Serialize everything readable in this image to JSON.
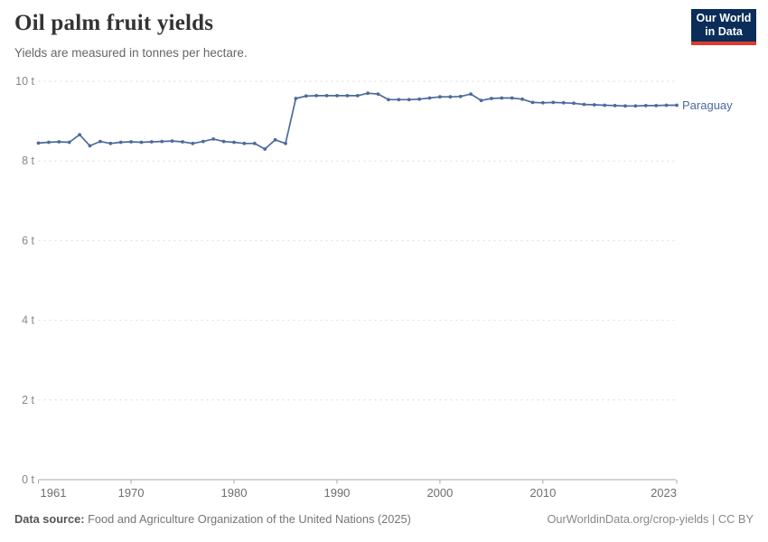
{
  "header": {
    "title": "Oil palm fruit yields",
    "subtitle": "Yields are measured in tonnes per hectare."
  },
  "logo": {
    "line1": "Our World",
    "line2": "in Data",
    "bg_color": "#0A2D5A",
    "bar_color": "#DC3A2E"
  },
  "chart_data": {
    "type": "line",
    "title": "Oil palm fruit yields",
    "unit": "t",
    "grid": "horizontal-dashed",
    "legend_position": "inline-end-label",
    "xlim": [
      1961,
      2023
    ],
    "ylim": [
      0,
      10
    ],
    "yticks": [
      0,
      2,
      4,
      6,
      8,
      10
    ],
    "ytick_suffix": " t",
    "xticks": [
      1961,
      1970,
      1980,
      1990,
      2000,
      2010,
      2023
    ],
    "x": [
      1961,
      1962,
      1963,
      1964,
      1965,
      1966,
      1967,
      1968,
      1969,
      1970,
      1971,
      1972,
      1973,
      1974,
      1975,
      1976,
      1977,
      1978,
      1979,
      1980,
      1981,
      1982,
      1983,
      1984,
      1985,
      1986,
      1987,
      1988,
      1989,
      1990,
      1991,
      1992,
      1993,
      1994,
      1995,
      1996,
      1997,
      1998,
      1999,
      2000,
      2001,
      2002,
      2003,
      2004,
      2005,
      2006,
      2007,
      2008,
      2009,
      2010,
      2011,
      2012,
      2013,
      2014,
      2015,
      2016,
      2017,
      2018,
      2019,
      2020,
      2021,
      2022,
      2023
    ],
    "series": [
      {
        "name": "Paraguay",
        "color": "#4C6A9C",
        "values": [
          8.45,
          8.47,
          8.48,
          8.47,
          8.66,
          8.38,
          8.49,
          8.44,
          8.47,
          8.48,
          8.47,
          8.48,
          8.49,
          8.5,
          8.48,
          8.44,
          8.49,
          8.55,
          8.49,
          8.47,
          8.44,
          8.44,
          8.3,
          8.53,
          8.44,
          9.57,
          9.63,
          9.64,
          9.64,
          9.64,
          9.64,
          9.64,
          9.7,
          9.68,
          9.54,
          9.54,
          9.54,
          9.55,
          9.58,
          9.61,
          9.61,
          9.62,
          9.68,
          9.52,
          9.57,
          9.58,
          9.58,
          9.55,
          9.47,
          9.46,
          9.47,
          9.46,
          9.45,
          9.42,
          9.41,
          9.4,
          9.39,
          9.38,
          9.38,
          9.39,
          9.39,
          9.4,
          9.4
        ]
      }
    ]
  },
  "footer": {
    "datasource_label": "Data source:",
    "datasource": "Food and Agriculture Organization of the United Nations (2025)",
    "credit": "OurWorldinData.org/crop-yields | CC BY"
  }
}
